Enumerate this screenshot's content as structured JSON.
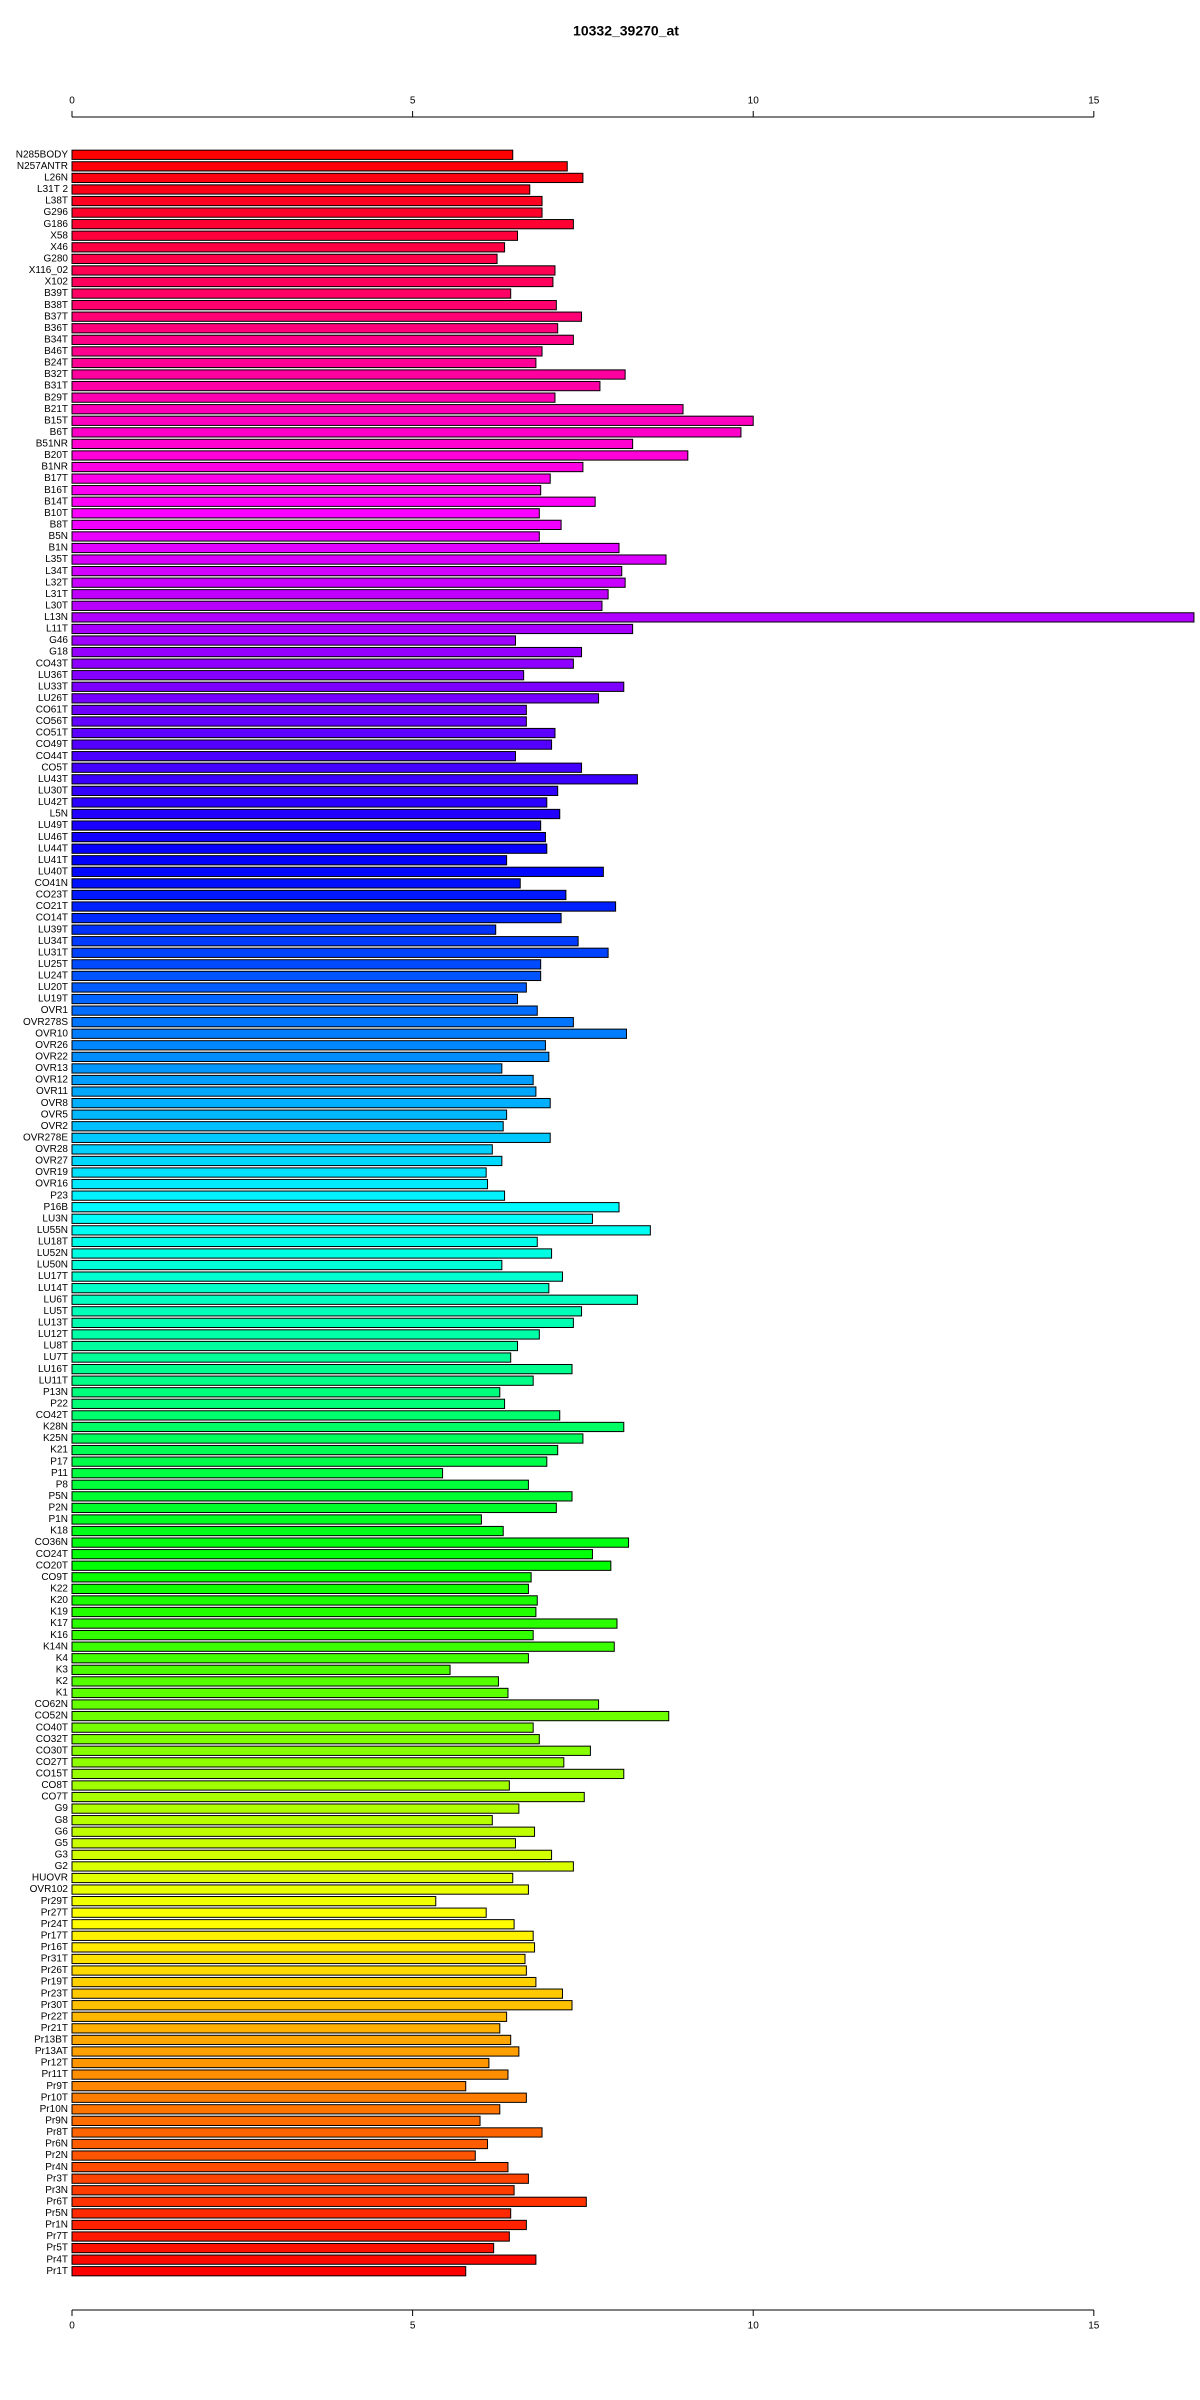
{
  "chart_data": {
    "type": "barh",
    "title": "10332_39270_at",
    "categories": [
      "N285BODY",
      "N257ANTR",
      "L26N",
      "L31T 2",
      "L38T",
      "G296",
      "G186",
      "X58",
      "X46",
      "G280",
      "X116_02",
      "X102",
      "B39T",
      "B38T",
      "B37T",
      "B36T",
      "B34T",
      "B46T",
      "B24T",
      "B32T",
      "B31T",
      "B29T",
      "B21T",
      "B15T",
      "B6T",
      "B51NR",
      "B20T",
      "B1NR",
      "B17T",
      "B16T",
      "B14T",
      "B10T",
      "B8T",
      "B5N",
      "B1N",
      "L35T",
      "L34T",
      "L32T",
      "L31T",
      "L30T",
      "L13N",
      "L11T",
      "G46",
      "G18",
      "CO43T",
      "LU36T",
      "LU33T",
      "LU26T",
      "CO61T",
      "CO56T",
      "CO51T",
      "CO49T",
      "CO44T",
      "CO5T",
      "LU43T",
      "LU30T",
      "LU42T",
      "L5N",
      "LU49T",
      "LU46T",
      "LU44T",
      "LU41T",
      "LU40T",
      "CO41N",
      "CO23T",
      "CO21T",
      "CO14T",
      "LU39T",
      "LU34T",
      "LU31T",
      "LU25T",
      "LU24T",
      "LU20T",
      "LU19T",
      "OVR1",
      "OVR278S",
      "OVR10",
      "OVR26",
      "OVR22",
      "OVR13",
      "OVR12",
      "OVR11",
      "OVR8",
      "OVR5",
      "OVR2",
      "OVR278E",
      "OVR28",
      "OVR27",
      "OVR19",
      "OVR16",
      "P23",
      "P16B",
      "LU3N",
      "LU55N",
      "LU18T",
      "LU52N",
      "LU50N",
      "LU17T",
      "LU14T",
      "LU6T",
      "LU5T",
      "LU13T",
      "LU12T",
      "LU8T",
      "LU7T",
      "LU16T",
      "LU11T",
      "P13N",
      "P22",
      "CO42T",
      "K28N",
      "K25N",
      "K21",
      "P17",
      "P11",
      "P8",
      "P5N",
      "P2N",
      "P1N",
      "K18",
      "CO36N",
      "CO24T",
      "CO20T",
      "CO9T",
      "K22",
      "K20",
      "K19",
      "K17",
      "K16",
      "K14N",
      "K4",
      "K3",
      "K2",
      "K1",
      "CO62N",
      "CO52N",
      "CO40T",
      "CO32T",
      "CO30T",
      "CO27T",
      "CO15T",
      "CO8T",
      "CO7T",
      "G9",
      "G8",
      "G6",
      "G5",
      "G3",
      "G2",
      "HUOVR",
      "OVR102",
      "Pr29T",
      "Pr27T",
      "Pr24T",
      "Pr17T",
      "Pr16T",
      "Pr31T",
      "Pr26T",
      "Pr19T",
      "Pr23T",
      "Pr30T",
      "Pr22T",
      "Pr21T",
      "Pr13BT",
      "Pr13AT",
      "Pr12T",
      "Pr11T",
      "Pr9T",
      "Pr10T",
      "Pr10N",
      "Pr9N",
      "Pr8T",
      "Pr6N",
      "Pr2N",
      "Pr4N",
      "Pr3T",
      "Pr3N",
      "Pr6T",
      "Pr5N",
      "Pr1N",
      "Pr7T",
      "Pr5T",
      "Pr4T",
      "Pr1T"
    ],
    "values": [
      6.47,
      7.27,
      7.5,
      6.72,
      6.9,
      6.9,
      7.36,
      6.54,
      6.35,
      6.24,
      7.09,
      7.06,
      6.44,
      7.11,
      7.48,
      7.13,
      7.36,
      6.9,
      6.81,
      8.12,
      7.75,
      7.09,
      8.97,
      10.0,
      9.82,
      8.23,
      9.04,
      7.5,
      7.02,
      6.88,
      7.68,
      6.86,
      7.18,
      6.86,
      8.03,
      8.72,
      8.07,
      8.12,
      7.87,
      7.78,
      16.47,
      8.23,
      6.51,
      7.48,
      7.36,
      6.63,
      8.1,
      7.73,
      6.67,
      6.67,
      7.09,
      7.04,
      6.51,
      7.48,
      8.3,
      7.13,
      6.97,
      7.16,
      6.88,
      6.95,
      6.97,
      6.38,
      7.8,
      6.58,
      7.25,
      7.98,
      7.18,
      6.22,
      7.43,
      7.87,
      6.88,
      6.88,
      6.67,
      6.54,
      6.83,
      7.36,
      8.14,
      6.95,
      7.0,
      6.31,
      6.77,
      6.81,
      7.02,
      6.38,
      6.33,
      7.02,
      6.17,
      6.31,
      6.08,
      6.1,
      6.35,
      8.03,
      7.64,
      8.49,
      6.83,
      7.04,
      6.31,
      7.2,
      7.0,
      8.3,
      7.48,
      7.36,
      6.86,
      6.54,
      6.44,
      7.34,
      6.77,
      6.28,
      6.35,
      7.16,
      8.1,
      7.5,
      7.13,
      6.97,
      5.44,
      6.7,
      7.34,
      7.11,
      6.01,
      6.33,
      8.17,
      7.64,
      7.91,
      6.74,
      6.7,
      6.83,
      6.81,
      8.0,
      6.77,
      7.96,
      6.7,
      5.55,
      6.26,
      6.4,
      7.73,
      8.76,
      6.77,
      6.86,
      7.61,
      7.22,
      8.1,
      6.42,
      7.52,
      6.56,
      6.17,
      6.79,
      6.51,
      7.04,
      7.36,
      6.47,
      6.7,
      5.34,
      6.08,
      6.49,
      6.77,
      6.79,
      6.65,
      6.67,
      6.81,
      7.2,
      7.34,
      6.38,
      6.28,
      6.44,
      6.56,
      6.12,
      6.4,
      5.78,
      6.67,
      6.28,
      5.99,
      6.9,
      6.1,
      5.92,
      6.4,
      6.7,
      6.49,
      7.55,
      6.44,
      6.67,
      6.42,
      6.19,
      6.81,
      5.78
    ],
    "xlim": [
      0,
      16.5
    ],
    "xticks": [
      0,
      5,
      10,
      15
    ],
    "color_scheme": "rainbow"
  }
}
